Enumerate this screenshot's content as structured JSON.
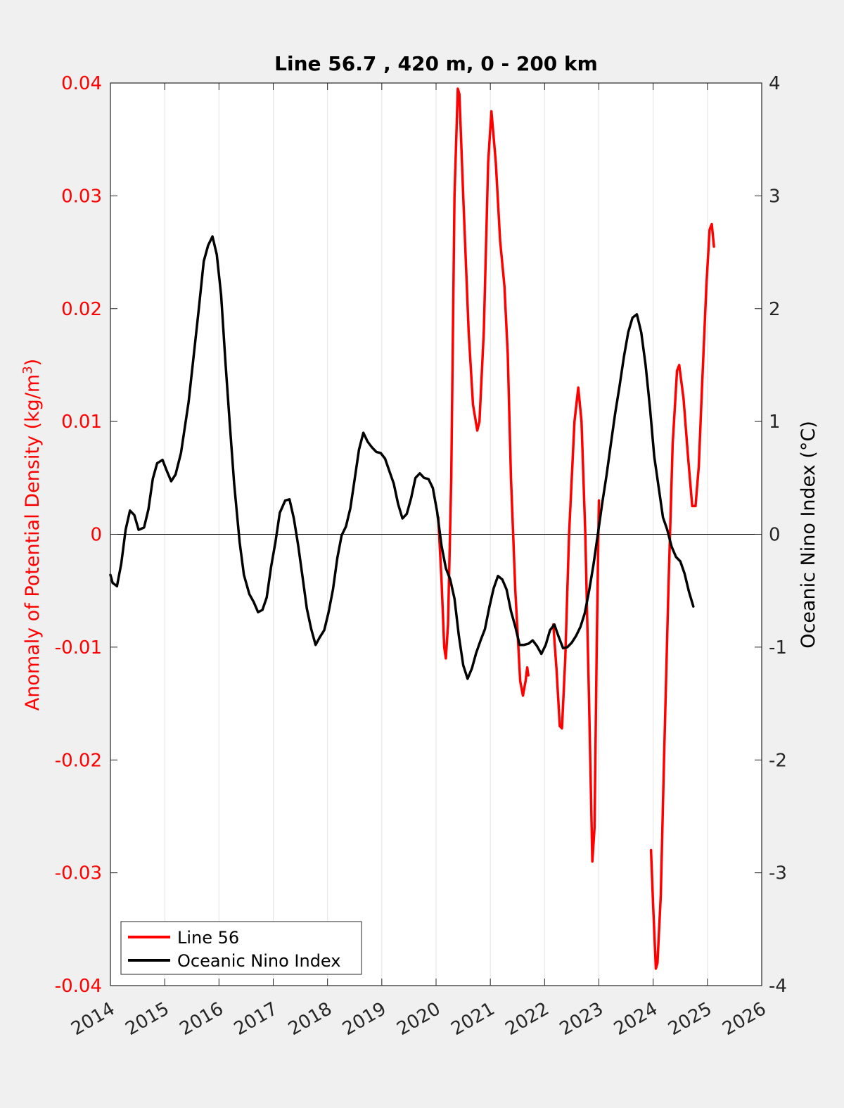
{
  "chart_data": {
    "type": "line",
    "title": "Line 56.7 , 420 m, 0 - 200 km",
    "xlabel": "",
    "ylabel_left": "Anomaly of Potential Density (kg/m",
    "ylabel_left_sup": "3",
    "ylabel_left_close": ")",
    "ylabel_right": "Oceanic Nino Index (°C)",
    "xlim": [
      2014,
      2026
    ],
    "ylim_left": [
      -0.04,
      0.04
    ],
    "ylim_right": [
      -4,
      4
    ],
    "x_ticks": [
      "2014",
      "2015",
      "2016",
      "2017",
      "2018",
      "2019",
      "2020",
      "2021",
      "2022",
      "2023",
      "2024",
      "2025",
      "2026"
    ],
    "y_left_ticks": [
      "0.04",
      "0.03",
      "0.02",
      "0.01",
      "0",
      "-0.01",
      "-0.02",
      "-0.03",
      "-0.04"
    ],
    "y_right_ticks": [
      "4",
      "3",
      "2",
      "1",
      "0",
      "-1",
      "-2",
      "-3",
      "-4"
    ],
    "grid": "vertical",
    "legend_position": "bottom-left",
    "colors": {
      "left_axis": "#ff0000",
      "line56": "#ff0000",
      "oni": "#000000"
    },
    "series": [
      {
        "name": "Line 56",
        "axis": "left",
        "segments": [
          [
            [
              2020.04,
              0.0015
            ],
            [
              2020.1,
              -0.004
            ],
            [
              2020.15,
              -0.01
            ],
            [
              2020.18,
              -0.011
            ],
            [
              2020.22,
              -0.008
            ],
            [
              2020.28,
              0.005
            ],
            [
              2020.34,
              0.03
            ],
            [
              2020.4,
              0.0395
            ],
            [
              2020.43,
              0.039
            ],
            [
              2020.5,
              0.03
            ],
            [
              2020.6,
              0.018
            ],
            [
              2020.68,
              0.0115
            ],
            [
              2020.76,
              0.0092
            ],
            [
              2020.8,
              0.01
            ],
            [
              2020.88,
              0.018
            ],
            [
              2020.96,
              0.033
            ],
            [
              2021.02,
              0.0375
            ],
            [
              2021.1,
              0.033
            ],
            [
              2021.18,
              0.026
            ],
            [
              2021.26,
              0.022
            ],
            [
              2021.32,
              0.016
            ],
            [
              2021.38,
              0.005
            ],
            [
              2021.46,
              -0.005
            ],
            [
              2021.55,
              -0.013
            ],
            [
              2021.6,
              -0.0143
            ],
            [
              2021.65,
              -0.013
            ],
            [
              2021.68,
              -0.0118
            ],
            [
              2021.7,
              -0.0125
            ]
          ],
          [
            [
              2022.16,
              -0.008
            ],
            [
              2022.22,
              -0.012
            ],
            [
              2022.28,
              -0.017
            ],
            [
              2022.32,
              -0.0172
            ],
            [
              2022.38,
              -0.011
            ],
            [
              2022.45,
              0.0
            ],
            [
              2022.55,
              0.01
            ],
            [
              2022.62,
              0.013
            ],
            [
              2022.68,
              0.01
            ],
            [
              2022.75,
              0.0
            ],
            [
              2022.82,
              -0.015
            ],
            [
              2022.88,
              -0.029
            ],
            [
              2022.92,
              -0.026
            ],
            [
              2022.96,
              -0.01
            ],
            [
              2023.0,
              0.003
            ]
          ],
          [
            [
              2023.96,
              -0.028
            ],
            [
              2024.0,
              -0.033
            ],
            [
              2024.05,
              -0.0385
            ],
            [
              2024.08,
              -0.038
            ],
            [
              2024.14,
              -0.032
            ],
            [
              2024.2,
              -0.02
            ],
            [
              2024.28,
              -0.005
            ],
            [
              2024.36,
              0.008
            ],
            [
              2024.44,
              0.0145
            ],
            [
              2024.48,
              0.015
            ],
            [
              2024.56,
              0.012
            ],
            [
              2024.64,
              0.007
            ],
            [
              2024.72,
              0.0025
            ],
            [
              2024.78,
              0.0025
            ],
            [
              2024.84,
              0.006
            ],
            [
              2024.9,
              0.013
            ],
            [
              2024.98,
              0.022
            ],
            [
              2025.04,
              0.027
            ],
            [
              2025.08,
              0.0275
            ],
            [
              2025.12,
              0.0255
            ]
          ]
        ]
      },
      {
        "name": "Oceanic Nino Index",
        "axis": "right",
        "segments": [
          [
            [
              2014.0,
              -0.36
            ],
            [
              2014.04,
              -0.43
            ],
            [
              2014.12,
              -0.46
            ],
            [
              2014.2,
              -0.26
            ],
            [
              2014.28,
              0.04
            ],
            [
              2014.36,
              0.21
            ],
            [
              2014.44,
              0.17
            ],
            [
              2014.52,
              0.04
            ],
            [
              2014.62,
              0.06
            ],
            [
              2014.7,
              0.22
            ],
            [
              2014.78,
              0.49
            ],
            [
              2014.86,
              0.63
            ],
            [
              2014.96,
              0.66
            ],
            [
              2015.04,
              0.56
            ],
            [
              2015.12,
              0.47
            ],
            [
              2015.2,
              0.53
            ],
            [
              2015.3,
              0.72
            ],
            [
              2015.44,
              1.17
            ],
            [
              2015.52,
              1.52
            ],
            [
              2015.62,
              1.96
            ],
            [
              2015.72,
              2.42
            ],
            [
              2015.8,
              2.56
            ],
            [
              2015.88,
              2.64
            ],
            [
              2015.96,
              2.48
            ],
            [
              2016.04,
              2.12
            ],
            [
              2016.12,
              1.52
            ],
            [
              2016.2,
              0.97
            ],
            [
              2016.28,
              0.45
            ],
            [
              2016.38,
              -0.07
            ],
            [
              2016.46,
              -0.36
            ],
            [
              2016.56,
              -0.53
            ],
            [
              2016.64,
              -0.6
            ],
            [
              2016.72,
              -0.69
            ],
            [
              2016.8,
              -0.67
            ],
            [
              2016.88,
              -0.56
            ],
            [
              2016.96,
              -0.29
            ],
            [
              2017.04,
              -0.07
            ],
            [
              2017.12,
              0.19
            ],
            [
              2017.22,
              0.3
            ],
            [
              2017.3,
              0.31
            ],
            [
              2017.38,
              0.14
            ],
            [
              2017.46,
              -0.1
            ],
            [
              2017.54,
              -0.38
            ],
            [
              2017.62,
              -0.66
            ],
            [
              2017.7,
              -0.84
            ],
            [
              2017.78,
              -0.98
            ],
            [
              2017.86,
              -0.91
            ],
            [
              2017.94,
              -0.85
            ],
            [
              2018.02,
              -0.69
            ],
            [
              2018.1,
              -0.49
            ],
            [
              2018.18,
              -0.21
            ],
            [
              2018.26,
              -0.01
            ],
            [
              2018.34,
              0.07
            ],
            [
              2018.42,
              0.23
            ],
            [
              2018.5,
              0.49
            ],
            [
              2018.58,
              0.75
            ],
            [
              2018.66,
              0.9
            ],
            [
              2018.74,
              0.82
            ],
            [
              2018.82,
              0.77
            ],
            [
              2018.9,
              0.73
            ],
            [
              2018.98,
              0.72
            ],
            [
              2019.06,
              0.67
            ],
            [
              2019.14,
              0.56
            ],
            [
              2019.22,
              0.45
            ],
            [
              2019.3,
              0.27
            ],
            [
              2019.38,
              0.14
            ],
            [
              2019.46,
              0.18
            ],
            [
              2019.54,
              0.32
            ],
            [
              2019.62,
              0.5
            ],
            [
              2019.7,
              0.54
            ],
            [
              2019.78,
              0.5
            ],
            [
              2019.86,
              0.49
            ],
            [
              2019.94,
              0.41
            ],
            [
              2020.02,
              0.2
            ],
            [
              2020.1,
              -0.1
            ],
            [
              2020.18,
              -0.3
            ],
            [
              2020.26,
              -0.4
            ],
            [
              2020.34,
              -0.57
            ],
            [
              2020.42,
              -0.9
            ],
            [
              2020.5,
              -1.16
            ],
            [
              2020.58,
              -1.28
            ],
            [
              2020.66,
              -1.19
            ],
            [
              2020.74,
              -1.05
            ],
            [
              2020.82,
              -0.94
            ],
            [
              2020.9,
              -0.84
            ],
            [
              2020.98,
              -0.65
            ],
            [
              2021.06,
              -0.48
            ],
            [
              2021.14,
              -0.37
            ],
            [
              2021.22,
              -0.4
            ],
            [
              2021.3,
              -0.49
            ],
            [
              2021.38,
              -0.68
            ],
            [
              2021.46,
              -0.82
            ],
            [
              2021.54,
              -0.98
            ],
            [
              2021.62,
              -0.98
            ],
            [
              2021.7,
              -0.97
            ],
            [
              2021.78,
              -0.94
            ],
            [
              2021.86,
              -0.99
            ],
            [
              2021.94,
              -1.06
            ],
            [
              2022.02,
              -0.98
            ],
            [
              2022.1,
              -0.85
            ],
            [
              2022.18,
              -0.8
            ],
            [
              2022.26,
              -0.91
            ],
            [
              2022.34,
              -1.01
            ],
            [
              2022.42,
              -1.0
            ],
            [
              2022.5,
              -0.96
            ],
            [
              2022.58,
              -0.9
            ],
            [
              2022.66,
              -0.82
            ],
            [
              2022.74,
              -0.7
            ],
            [
              2022.82,
              -0.5
            ],
            [
              2022.9,
              -0.27
            ],
            [
              2022.98,
              0.0
            ],
            [
              2023.06,
              0.27
            ],
            [
              2023.14,
              0.52
            ],
            [
              2023.22,
              0.8
            ],
            [
              2023.3,
              1.07
            ],
            [
              2023.38,
              1.31
            ],
            [
              2023.46,
              1.57
            ],
            [
              2023.54,
              1.79
            ],
            [
              2023.62,
              1.92
            ],
            [
              2023.7,
              1.95
            ],
            [
              2023.78,
              1.79
            ],
            [
              2023.86,
              1.5
            ],
            [
              2023.94,
              1.13
            ],
            [
              2024.02,
              0.69
            ],
            [
              2024.1,
              0.42
            ],
            [
              2024.18,
              0.15
            ],
            [
              2024.26,
              0.04
            ],
            [
              2024.34,
              -0.11
            ],
            [
              2024.42,
              -0.2
            ],
            [
              2024.5,
              -0.24
            ],
            [
              2024.58,
              -0.35
            ],
            [
              2024.66,
              -0.51
            ],
            [
              2024.74,
              -0.64
            ]
          ]
        ]
      }
    ]
  }
}
